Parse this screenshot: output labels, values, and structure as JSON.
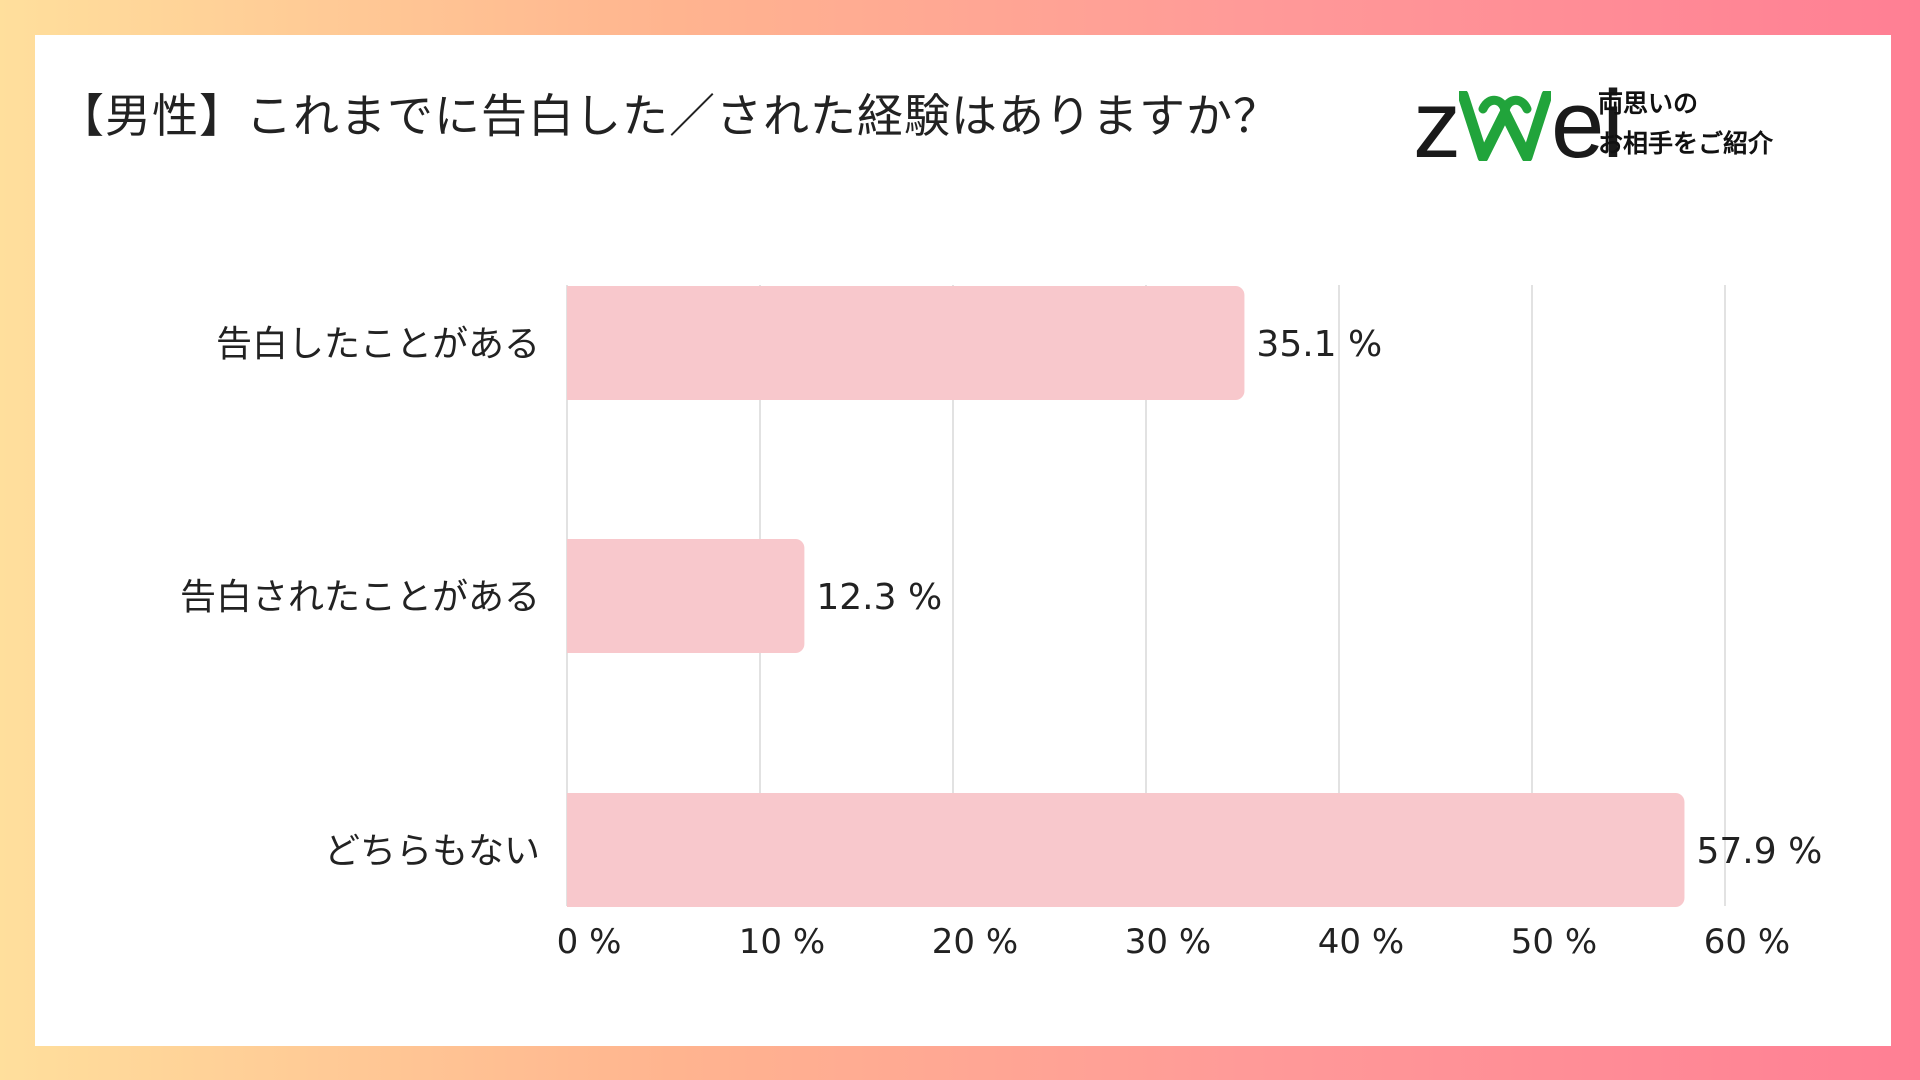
{
  "title": "【男性】これまでに告白した／された経験はありますか？",
  "logo": {
    "wordmark": "zwei",
    "tagline_line1": "両思いの",
    "tagline_line2": "お相手をご紹介",
    "heart_color": "#21a43b"
  },
  "colors": {
    "bar": "#f8c8cc",
    "grid": "#d9d9d9",
    "text": "#222222",
    "background_gradient": [
      "#ffdf9c",
      "#ff7f94"
    ]
  },
  "chart_data": {
    "type": "bar",
    "orientation": "horizontal",
    "categories": [
      "告白したことがある",
      "告白されたことがある",
      "どちらもない"
    ],
    "values": [
      35.1,
      12.3,
      57.9
    ],
    "value_labels": [
      "35.1 %",
      "12.3 %",
      "57.9 %"
    ],
    "xlim": [
      0,
      60
    ],
    "xticks": [
      0,
      10,
      20,
      30,
      40,
      50,
      60
    ],
    "xtick_labels": [
      "0 %",
      "10 %",
      "20 %",
      "30 %",
      "40 %",
      "50 %",
      "60 %"
    ],
    "grid": true,
    "legend": "none",
    "title": "【男性】これまでに告白した／された経験はありますか？"
  }
}
